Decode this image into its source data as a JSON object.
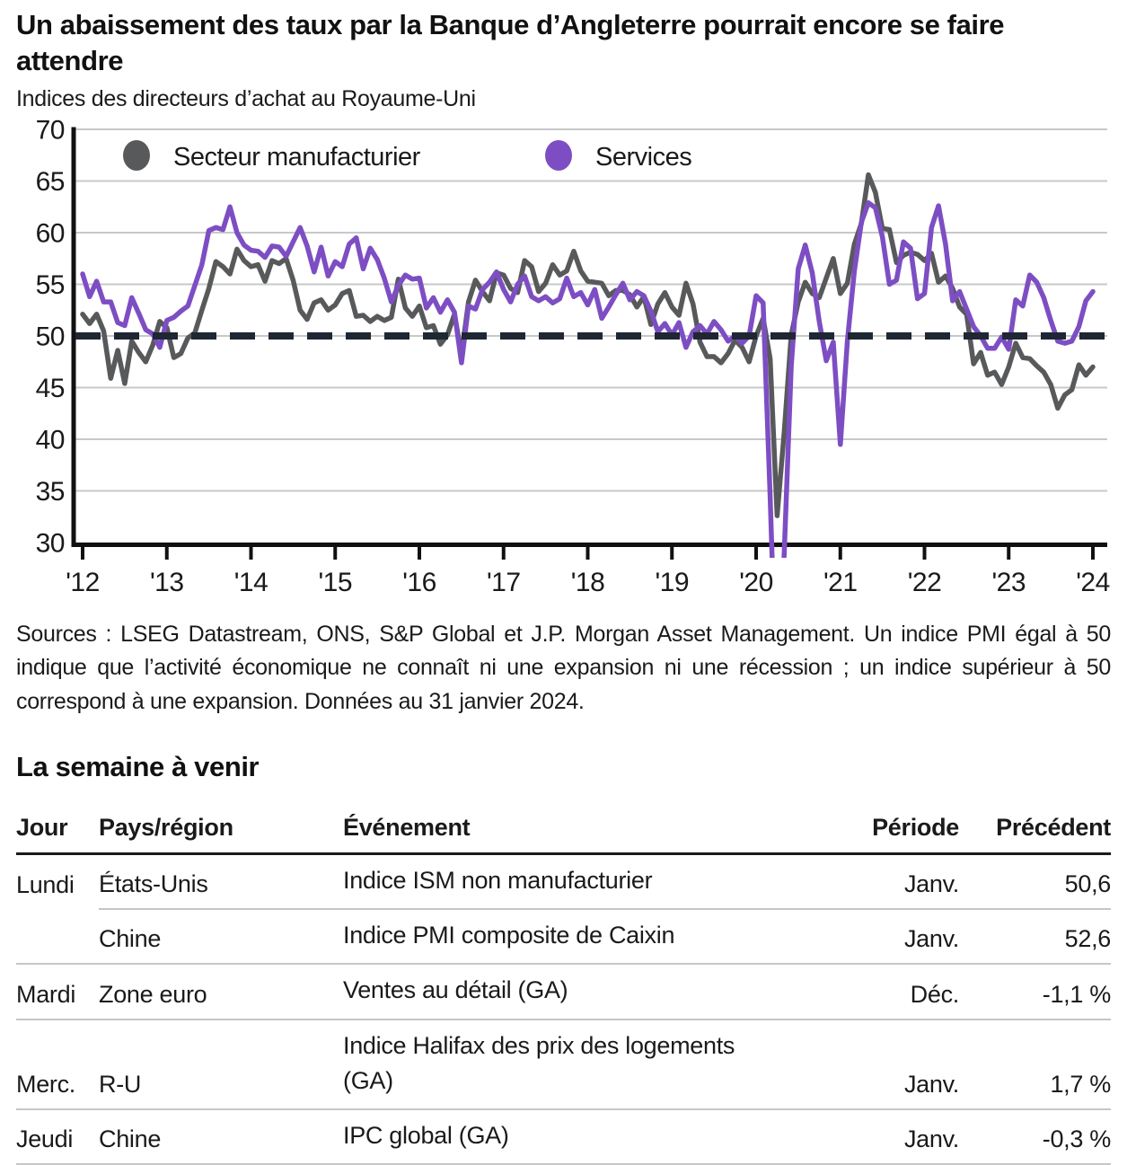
{
  "header": {
    "title": "Un abaissement des taux par la Banque d’Angleterre pourrait encore se faire attendre",
    "subtitle": "Indices des directeurs d’achat au Royaume-Uni"
  },
  "colors": {
    "manufacturing": "#58595b",
    "services": "#7d4ec3",
    "dashed_reference": "#1e2733",
    "grid": "#c7c8c9",
    "axis": "#111111"
  },
  "chart_data": {
    "type": "line",
    "title": "Indices des directeurs d’achat au Royaume-Uni",
    "x_tick_labels": [
      "'12",
      "'13",
      "'14",
      "'15",
      "'16",
      "'17",
      "'18",
      "'19",
      "'20",
      "'21",
      "'22",
      "'23",
      "'24"
    ],
    "x_frequency": "monthly",
    "x_range": [
      "2012-01",
      "2024-01"
    ],
    "y_ticks": [
      70,
      65,
      60,
      55,
      50,
      45,
      40,
      35,
      30
    ],
    "ylim": [
      30,
      70
    ],
    "grid": true,
    "reference_line": 50,
    "legend_position": "top-inside",
    "legend": [
      {
        "label": "Secteur manufacturier",
        "color": "#58595b"
      },
      {
        "label": "Services",
        "color": "#7d4ec3"
      }
    ],
    "series": [
      {
        "name": "Secteur manufacturier",
        "color": "#58595b",
        "values": [
          52.1,
          51.2,
          52.1,
          50.5,
          45.9,
          48.6,
          45.4,
          49.5,
          48.4,
          47.5,
          49.1,
          51.4,
          50.8,
          47.9,
          48.3,
          49.8,
          50.3,
          52.5,
          54.6,
          57.2,
          56.7,
          56.0,
          58.4,
          57.3,
          56.7,
          56.9,
          55.3,
          57.3,
          57.0,
          57.5,
          55.4,
          52.5,
          51.6,
          53.2,
          53.5,
          52.5,
          53.0,
          54.1,
          54.4,
          51.9,
          52.0,
          51.4,
          51.9,
          51.5,
          51.8,
          55.5,
          52.7,
          51.9,
          52.9,
          50.8,
          51.0,
          49.2,
          50.1,
          52.1,
          48.2,
          53.3,
          55.4,
          54.3,
          53.4,
          56.1,
          55.9,
          54.6,
          54.2,
          57.3,
          56.7,
          54.3,
          55.1,
          56.9,
          55.9,
          56.3,
          58.2,
          56.3,
          55.3,
          55.2,
          55.1,
          53.9,
          54.4,
          54.4,
          54.0,
          52.8,
          53.8,
          51.1,
          53.1,
          54.2,
          52.8,
          52.0,
          55.1,
          53.1,
          49.4,
          48.0,
          48.0,
          47.4,
          48.3,
          49.6,
          48.9,
          47.5,
          50.0,
          51.7,
          47.8,
          32.6,
          40.7,
          50.1,
          53.3,
          55.2,
          54.1,
          53.7,
          55.6,
          57.5,
          54.1,
          55.1,
          58.9,
          60.9,
          65.6,
          63.9,
          60.4,
          60.3,
          57.1,
          57.8,
          58.1,
          57.9,
          57.3,
          58.0,
          55.2,
          55.8,
          54.6,
          52.8,
          52.1,
          47.3,
          48.4,
          46.2,
          46.5,
          45.3,
          47.0,
          49.3,
          47.9,
          47.8,
          47.1,
          46.5,
          45.3,
          43.0,
          44.3,
          44.8,
          47.2,
          46.2,
          47.0
        ]
      },
      {
        "name": "Services",
        "color": "#7d4ec3",
        "values": [
          56.0,
          53.8,
          55.3,
          53.3,
          53.3,
          51.3,
          51.0,
          53.7,
          52.2,
          50.6,
          50.2,
          48.9,
          51.5,
          51.8,
          52.4,
          52.9,
          54.9,
          56.9,
          60.2,
          60.5,
          60.3,
          62.5,
          60.0,
          58.8,
          58.3,
          58.2,
          57.6,
          58.7,
          58.6,
          57.7,
          59.1,
          60.5,
          58.7,
          56.2,
          58.6,
          55.8,
          57.2,
          56.7,
          58.9,
          59.5,
          56.5,
          58.5,
          57.4,
          55.6,
          53.3,
          54.9,
          55.9,
          55.5,
          55.6,
          52.7,
          53.7,
          52.3,
          53.5,
          52.3,
          47.4,
          52.9,
          52.6,
          54.5,
          55.2,
          56.2,
          54.5,
          53.3,
          55.0,
          55.8,
          53.8,
          53.4,
          53.8,
          53.2,
          53.6,
          55.6,
          53.8,
          54.2,
          53.0,
          54.5,
          51.7,
          52.8,
          54.0,
          55.1,
          53.5,
          54.3,
          53.9,
          52.4,
          50.4,
          51.2,
          50.1,
          51.3,
          48.9,
          50.4,
          51.0,
          50.2,
          51.4,
          50.6,
          49.5,
          50.0,
          49.3,
          50.0,
          53.9,
          53.2,
          34.5,
          13.4,
          29.0,
          47.1,
          56.5,
          58.8,
          56.1,
          51.4,
          47.6,
          49.4,
          39.5,
          49.5,
          56.3,
          61.0,
          62.9,
          62.4,
          59.6,
          55.0,
          55.4,
          59.1,
          58.5,
          53.6,
          54.1,
          60.5,
          62.6,
          58.9,
          53.4,
          54.3,
          52.6,
          50.9,
          50.0,
          48.8,
          48.8,
          49.9,
          48.7,
          53.5,
          52.9,
          55.9,
          55.2,
          53.7,
          51.5,
          49.5,
          49.3,
          49.5,
          50.9,
          53.4,
          54.3
        ]
      }
    ]
  },
  "source_note": "Sources : LSEG Datastream, ONS, S&P Global et J.P. Morgan Asset Management. Un indice PMI égal à 50 indique que l’activité économique ne connaît ni une expansion ni une récession ; un indice supérieur à 50 correspond à une expansion. Données au 31 janvier 2024.",
  "week_ahead": {
    "heading": "La semaine à venir",
    "columns": [
      "Jour",
      "Pays/région",
      "Événement",
      "Période",
      "Précédent"
    ],
    "rows": [
      {
        "jour": "Lundi",
        "pays": "États-Unis",
        "evenement": "Indice ISM non manufacturier",
        "periode": "Janv.",
        "precedent": "50,6",
        "skip_jour_border": true
      },
      {
        "jour": "",
        "pays": "Chine",
        "evenement": "Indice PMI composite de Caixin",
        "periode": "Janv.",
        "precedent": "52,6"
      },
      {
        "jour": "Mardi",
        "pays": "Zone euro",
        "evenement": "Ventes au détail (GA)",
        "periode": "Déc.",
        "precedent": "-1,1 %"
      },
      {
        "jour": "Merc.",
        "pays": "R-U",
        "evenement": "Indice Halifax des prix des logements\n(GA)",
        "periode": "Janv.",
        "precedent": "1,7 %"
      },
      {
        "jour": "Jeudi",
        "pays": "Chine",
        "evenement": "IPC global (GA)",
        "periode": "Janv.",
        "precedent": "-0,3 %"
      }
    ]
  }
}
